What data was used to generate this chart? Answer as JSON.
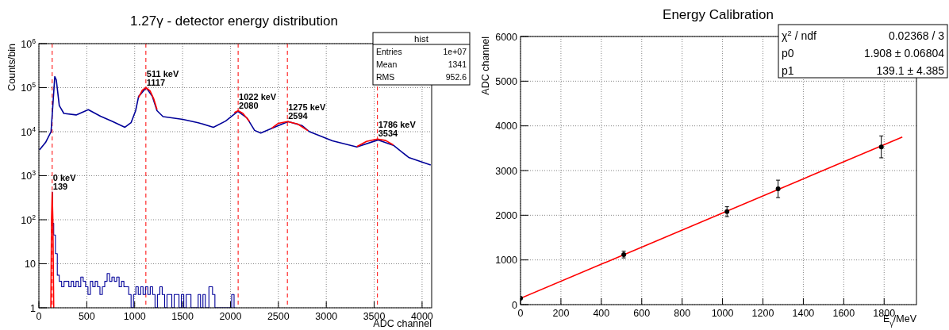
{
  "chart_data": [
    {
      "type": "step",
      "title": "1.27γ - detector energy distribution",
      "xlabel": "ADC channel",
      "ylabel": "Counts/bin",
      "log": "y",
      "grid": true,
      "xlim": [
        0,
        4100
      ],
      "ylim": [
        1,
        1000000
      ],
      "xticks": [
        0,
        500,
        1000,
        1500,
        2000,
        2500,
        3000,
        3500,
        4000
      ],
      "yticks": [
        1,
        10,
        {
          "value": 100,
          "label": "10$^{2}$"
        },
        {
          "value": 1000,
          "label": "10$^{3}$"
        },
        {
          "value": 10000,
          "label": "10$^{4}$"
        },
        {
          "value": 100000,
          "label": "10$^{5}$"
        },
        {
          "value": 1000000,
          "label": "10$^{6}$"
        }
      ],
      "series": [
        {
          "type": "line",
          "color": "#000099",
          "x": [
            6,
            70,
            127,
            150,
            166,
            182,
            213,
            261,
            389,
            516,
            643,
            771,
            898,
            962,
            1010,
            1041,
            1121,
            1185,
            1233,
            1296,
            1503,
            1663,
            1822,
            1949,
            2077,
            2172,
            2252,
            2316,
            2427,
            2602,
            2745,
            2825,
            3064,
            3319,
            3542,
            3701,
            3860,
            4090
          ],
          "values": [
            3850,
            5700,
            10000,
            54000,
            178000,
            150000,
            39000,
            26000,
            24000,
            31600,
            22400,
            17000,
            12600,
            16000,
            30000,
            63000,
            100000,
            63000,
            30000,
            22000,
            19000,
            16000,
            12600,
            17400,
            29000,
            20500,
            10700,
            9300,
            11800,
            17000,
            13800,
            10000,
            6200,
            4500,
            6500,
            4900,
            2600,
            1750
          ]
        },
        {
          "color": "#000099",
          "x": [
            134,
            150,
            160,
            185,
            200,
            225,
            250,
            275,
            300,
            325,
            350,
            375,
            400,
            425,
            450,
            475,
            500,
            525,
            550,
            575,
            600,
            625,
            650,
            675,
            700,
            725,
            750,
            775,
            800,
            825,
            850,
            875,
            900,
            925,
            950,
            975,
            1000,
            1025,
            1050,
            1075,
            1100,
            1125,
            1150,
            1175,
            1200,
            1225,
            1250,
            1275,
            1300,
            1325,
            1350,
            1375,
            1400,
            1425,
            1450,
            1475,
            1500,
            1525,
            1550,
            1575,
            1600,
            1650,
            1675,
            1700,
            1725,
            1750,
            1800,
            1825,
            1850,
            2000,
            2025,
            2050
          ],
          "values": [
            420,
            83,
            45,
            17,
            5.5,
            4,
            3,
            4,
            4,
            3,
            4,
            3,
            4,
            3,
            5,
            4,
            3,
            2,
            4,
            3,
            4,
            3,
            2,
            3,
            4,
            6,
            4,
            5,
            4,
            5,
            3,
            4,
            3,
            3,
            2,
            1,
            2,
            3,
            2,
            3,
            2,
            3,
            2,
            3,
            2,
            1,
            2,
            3,
            2,
            1,
            2,
            2,
            1,
            2,
            2,
            1,
            2,
            1,
            2,
            2,
            1,
            1,
            2,
            1,
            2,
            1,
            3,
            2,
            1,
            1,
            2,
            1
          ]
        },
        {
          "type": "line",
          "color": "#ff0000",
          "x": [
            125,
            132,
            139,
            146,
            155
          ],
          "values": [
            1,
            100,
            420,
            100,
            1
          ]
        },
        {
          "type": "line",
          "color": "#ff0000",
          "x": [
            1041,
            1080,
            1117,
            1160,
            1200,
            1233
          ],
          "values": [
            60000,
            88000,
            100000,
            85000,
            55000,
            32000
          ]
        },
        {
          "type": "line",
          "color": "#ff0000",
          "x": [
            2040,
            2080,
            2130,
            2200
          ],
          "values": [
            27000,
            30000,
            26000,
            17000
          ]
        },
        {
          "type": "line",
          "color": "#ff0000",
          "x": [
            2430,
            2500,
            2594,
            2700,
            2810
          ],
          "values": [
            12000,
            15500,
            17000,
            15000,
            10500
          ]
        },
        {
          "type": "line",
          "color": "#ff0000",
          "x": [
            3320,
            3420,
            3534,
            3620,
            3700
          ],
          "values": [
            4600,
            6000,
            6800,
            6300,
            5000
          ]
        }
      ],
      "ref_lines": [
        {
          "axis": "x",
          "value": 139,
          "color": "#ff0000",
          "line_style": "dashed"
        },
        {
          "axis": "x",
          "value": 1117,
          "color": "#ff0000",
          "line_style": "dashed"
        },
        {
          "axis": "x",
          "value": 2080,
          "color": "#ff0000",
          "line_style": "dashed"
        },
        {
          "axis": "x",
          "value": 2594,
          "color": "#ff0000",
          "line_style": "dashed"
        },
        {
          "axis": "x",
          "value": 3534,
          "color": "#ff0000",
          "line_style": "dashed"
        }
      ],
      "annotations": [
        {
          "text": "0 keV\n139",
          "x": 139,
          "y": 420
        },
        {
          "text": "511 keV\n1117",
          "x": 1117,
          "y": 100000
        },
        {
          "text": "1022 keV\n2080",
          "x": 2080,
          "y": 30000
        },
        {
          "text": "1275 keV\n2594",
          "x": 2594,
          "y": 17000
        },
        {
          "text": "1786 keV\n3534",
          "x": 3534,
          "y": 6800
        },
        "hist",
        "Entries",
        "1e+07",
        "Mean",
        "1341",
        "RMS",
        "952.6"
      ]
    },
    {
      "type": "scatter",
      "title": "Energy Calibration",
      "xlabel": "E$_{γ}$/MeV",
      "ylabel": "ADC channel",
      "grid": true,
      "marker": "circle",
      "xlim": [
        0,
        1960
      ],
      "ylim": [
        0,
        6000
      ],
      "xticks": [
        0,
        200,
        400,
        600,
        800,
        1000,
        1200,
        1400,
        1600,
        1800
      ],
      "yticks": [
        0,
        1000,
        2000,
        3000,
        4000,
        5000,
        6000
      ],
      "series": [
        {
          "type": "line",
          "marker": "none",
          "color": "#ff0000",
          "x": [
            0,
            1890
          ],
          "values": [
            140,
            3750
          ]
        },
        {
          "color": "#000000",
          "x": [
            0,
            511,
            1022,
            1275,
            1786
          ],
          "values": [
            140,
            1120,
            2080,
            2590,
            3530
          ],
          "errors": [
            null,
            75,
            110,
            195,
            245
          ]
        }
      ],
      "annotations": [
        "χ$^{2}$ / ndf",
        "0.02368 / 3",
        "p0",
        "1.908 ± 0.06804",
        "p1",
        "139.1 ± 4.385"
      ]
    }
  ]
}
